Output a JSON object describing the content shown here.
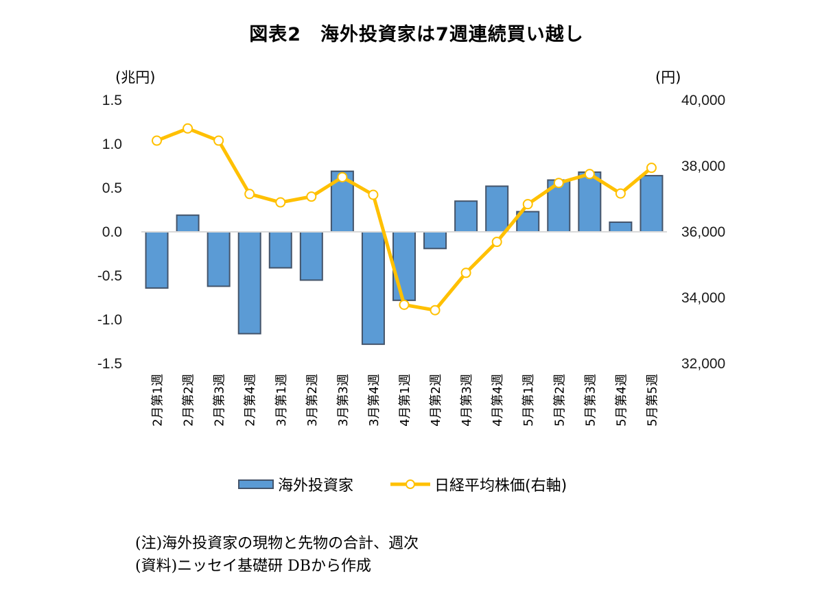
{
  "title": "図表2　海外投資家は7週連続買い越し",
  "notes": [
    "(注)海外投資家の現物と先物の合計、週次",
    "(資料)ニッセイ基礎研 DBから作成"
  ],
  "colors": {
    "bar_fill": "#5b9bd5",
    "bar_stroke": "#44546a",
    "line": "#ffc000",
    "marker_fill": "#ffffff",
    "baseline": "#d9d9d9"
  },
  "chart_data": {
    "type": "bar+line",
    "title": "図表2　海外投資家は7週連続買い越し",
    "left_axis": {
      "label": "(兆円)",
      "ylim": [
        -1.5,
        1.5
      ],
      "ticks": [
        "1.5",
        "1.0",
        "0.5",
        "0.0",
        "-0.5",
        "-1.0",
        "-1.5"
      ]
    },
    "right_axis": {
      "label": "(円)",
      "ylim": [
        32000,
        40000
      ],
      "ticks": [
        "40,000",
        "38,000",
        "36,000",
        "34,000",
        "32,000"
      ]
    },
    "categories": [
      "2月第1週",
      "2月第2週",
      "2月第3週",
      "2月第4週",
      "3月第1週",
      "3月第2週",
      "3月第3週",
      "3月第4週",
      "4月第1週",
      "4月第2週",
      "4月第3週",
      "4月第4週",
      "5月第1週",
      "5月第2週",
      "5月第3週",
      "5月第4週",
      "5月第5週"
    ],
    "series": [
      {
        "name": "海外投資家",
        "type": "bar",
        "axis": "left",
        "values": [
          -0.64,
          0.19,
          -0.62,
          -1.16,
          -0.41,
          -0.55,
          0.69,
          -1.28,
          -0.78,
          -0.19,
          0.35,
          0.52,
          0.23,
          0.59,
          0.68,
          0.11,
          0.64
        ]
      },
      {
        "name": "日経平均株価(右軸)",
        "type": "line",
        "axis": "right",
        "values": [
          38770,
          39140,
          38770,
          37150,
          36895,
          37070,
          37660,
          37125,
          33785,
          33620,
          34755,
          35695,
          36840,
          37485,
          37755,
          37165,
          37945
        ]
      }
    ],
    "grid": false,
    "legend": "bottom"
  }
}
